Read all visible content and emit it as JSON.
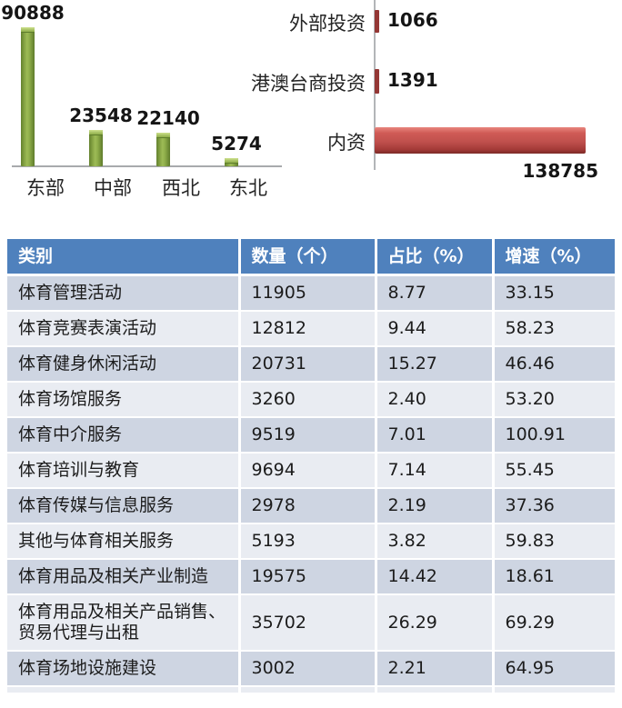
{
  "chart_data": [
    {
      "name": "region-column-chart",
      "type": "bar",
      "orientation": "vertical",
      "categories": [
        "东部",
        "中部",
        "西北",
        "东北"
      ],
      "values": [
        90888,
        23548,
        22140,
        5274
      ],
      "title": "",
      "xlabel": "",
      "ylabel": "",
      "ylim": [
        0,
        95000
      ],
      "grid": false,
      "legend": "none",
      "data_labels": "above-bars",
      "bar_color": "#7f9d3f",
      "axis_color": "#a8aaad",
      "label_color": "#151515"
    },
    {
      "name": "investment-bar-chart",
      "type": "bar",
      "orientation": "horizontal",
      "categories": [
        "外部投资",
        "港澳台商投资",
        "内资"
      ],
      "values": [
        1066,
        1391,
        138785
      ],
      "title": "",
      "xlabel": "",
      "ylabel": "",
      "xlim": [
        0,
        140000
      ],
      "grid": false,
      "legend": "none",
      "data_labels": "outside-end",
      "bar_color": "#c0504d",
      "small_bar_color": "#943735",
      "axis_color": "#b3b5b8",
      "label_color": "#151515"
    }
  ],
  "table": {
    "headers": [
      "类别",
      "数量（个）",
      "占比（%）",
      "增速（%）"
    ],
    "rows": [
      [
        "体育管理活动",
        "11905",
        "8.77",
        "33.15"
      ],
      [
        "体育竞赛表演活动",
        "12812",
        "9.44",
        "58.23"
      ],
      [
        "体育健身休闲活动",
        "20731",
        "15.27",
        "46.46"
      ],
      [
        "体育场馆服务",
        "3260",
        "2.40",
        "53.20"
      ],
      [
        "体育中介服务",
        "9519",
        "7.01",
        "100.91"
      ],
      [
        "体育培训与教育",
        "9694",
        "7.14",
        "55.45"
      ],
      [
        "体育传媒与信息服务",
        "2978",
        "2.19",
        "37.36"
      ],
      [
        "其他与体育相关服务",
        "5193",
        "3.82",
        "59.83"
      ],
      [
        "体育用品及相关产业制造",
        "19575",
        "14.42",
        "18.61"
      ],
      [
        "体育用品及相关产品销售、贸易代理与出租",
        "35702",
        "26.29",
        "69.29"
      ],
      [
        "体育场地设施建设",
        "3002",
        "2.21",
        "64.95"
      ]
    ],
    "header_bg": "#4f81bd",
    "header_text_color": "#ffffff",
    "row_bg_odd": "#ced5e2",
    "row_bg_even": "#e9ecf2",
    "body_text_color": "#1c1c1c"
  }
}
